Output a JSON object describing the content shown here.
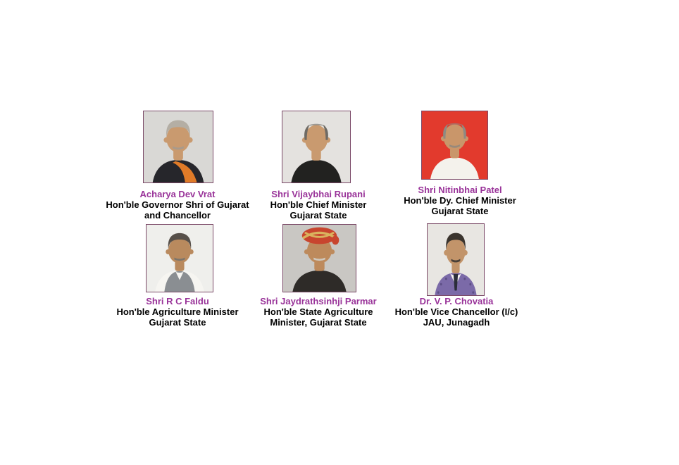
{
  "page": {
    "background": "#ffffff"
  },
  "colors": {
    "name_text": "#993399",
    "title_text": "#000000",
    "photo_border": "#7b4a68"
  },
  "people": [
    {
      "name": "Acharya Dev Vrat",
      "title_line1": "Hon'ble Governor Shri of Gujarat",
      "title_line2": "and Chancellor",
      "photo": {
        "bg": "#d9d8d5",
        "skin": "#c99a6f",
        "hair": "#b4aea4",
        "hair_style": "full",
        "jacket": "#26262b",
        "shirt": "",
        "extra": "shawl",
        "extra_color": "#e07b28",
        "moustache": "#a89a8c"
      }
    },
    {
      "name": "Shri Vijaybhai Rupani",
      "title_line1": "Hon'ble Chief Minister",
      "title_line2": "Gujarat State",
      "photo": {
        "bg": "#e4e2df",
        "skin": "#c99a6f",
        "hair": "#6e6a64",
        "hair_style": "balding",
        "jacket": "#222220",
        "shirt": "",
        "extra": "none",
        "moustache": ""
      }
    },
    {
      "name": "Shri Nitinbhai Patel",
      "title_line1": "Hon'ble Dy. Chief Minister",
      "title_line2": "Gujarat State",
      "photo": {
        "bg": "#e23a2d",
        "skin": "#c9966a",
        "hair": "#8e8a82",
        "hair_style": "balding",
        "jacket": "#f4f2ec",
        "shirt": "",
        "extra": "none",
        "moustache": "#97897b"
      }
    },
    {
      "name": "Shri R C Faldu",
      "title_line1": "Hon'ble Agriculture Minister",
      "title_line2": "Gujarat State",
      "photo": {
        "bg": "#efefec",
        "skin": "#b98a5e",
        "hair": "#57504a",
        "hair_style": "full",
        "jacket": "#8a8e92",
        "shirt": "#f6f5f1",
        "extra": "vest",
        "moustache": "#7c756c"
      }
    },
    {
      "name": "Shri Jaydrathsinhji Parmar",
      "title_line1": "Hon'ble State Agriculture",
      "title_line2": "Minister, Gujarat State",
      "photo": {
        "bg": "#c9c7c3",
        "skin": "#bd8a5c",
        "hair": "#555550",
        "hair_style": "turban",
        "jacket": "#2e2b28",
        "shirt": "",
        "extra": "turban",
        "extra_color": "#c8452e",
        "extra_color2": "#d9b35e",
        "moustache": "#cfc8bd"
      }
    },
    {
      "name": "Dr. V. P. Chovatia",
      "title_line1": "Hon'ble Vice Chancellor (I/c)",
      "title_line2": "JAU, Junagadh",
      "photo": {
        "bg": "#e8e6e2",
        "skin": "#c2946a",
        "hair": "#3a342e",
        "hair_style": "full",
        "jacket": "#7b6aa8",
        "shirt": "#f6f5f2",
        "extra": "tie",
        "extra_color": "#2a2d3a",
        "pattern": "#5d4f86",
        "moustache": "#4a4038"
      }
    }
  ]
}
